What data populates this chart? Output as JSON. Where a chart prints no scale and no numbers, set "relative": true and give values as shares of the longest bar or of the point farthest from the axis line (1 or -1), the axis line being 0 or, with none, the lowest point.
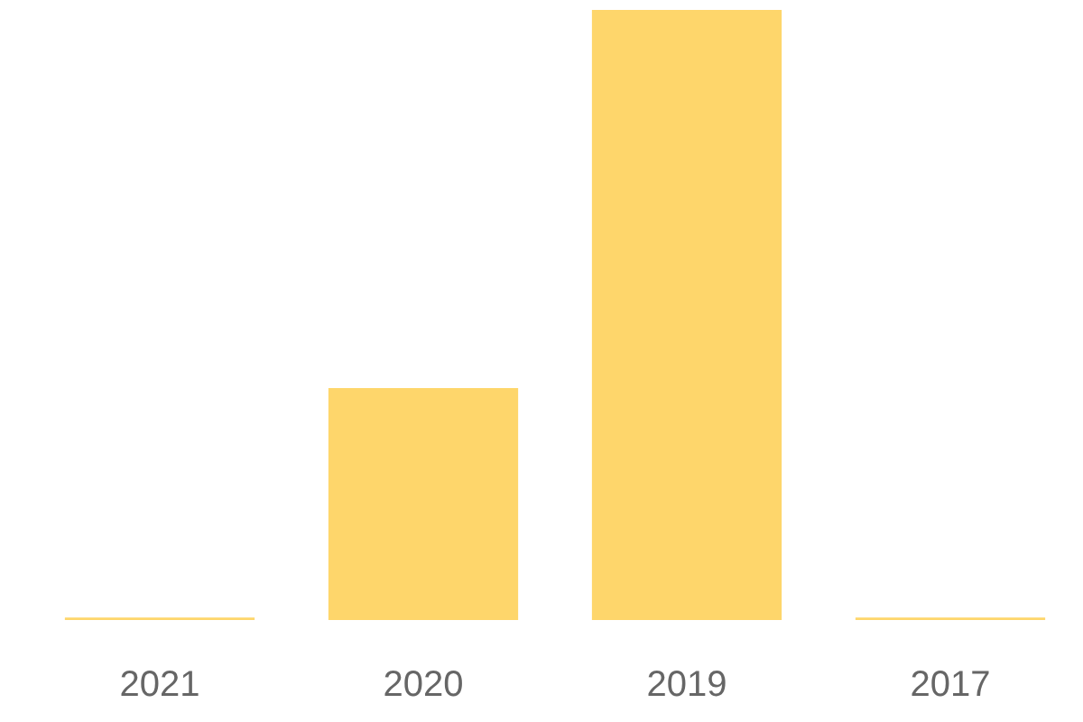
{
  "chart_data": {
    "type": "bar",
    "relative": true,
    "categories": [
      "2021",
      "2020",
      "2019",
      "2017"
    ],
    "values": [
      0.004,
      0.38,
      1,
      0.004
    ],
    "color": "#fed66b"
  }
}
